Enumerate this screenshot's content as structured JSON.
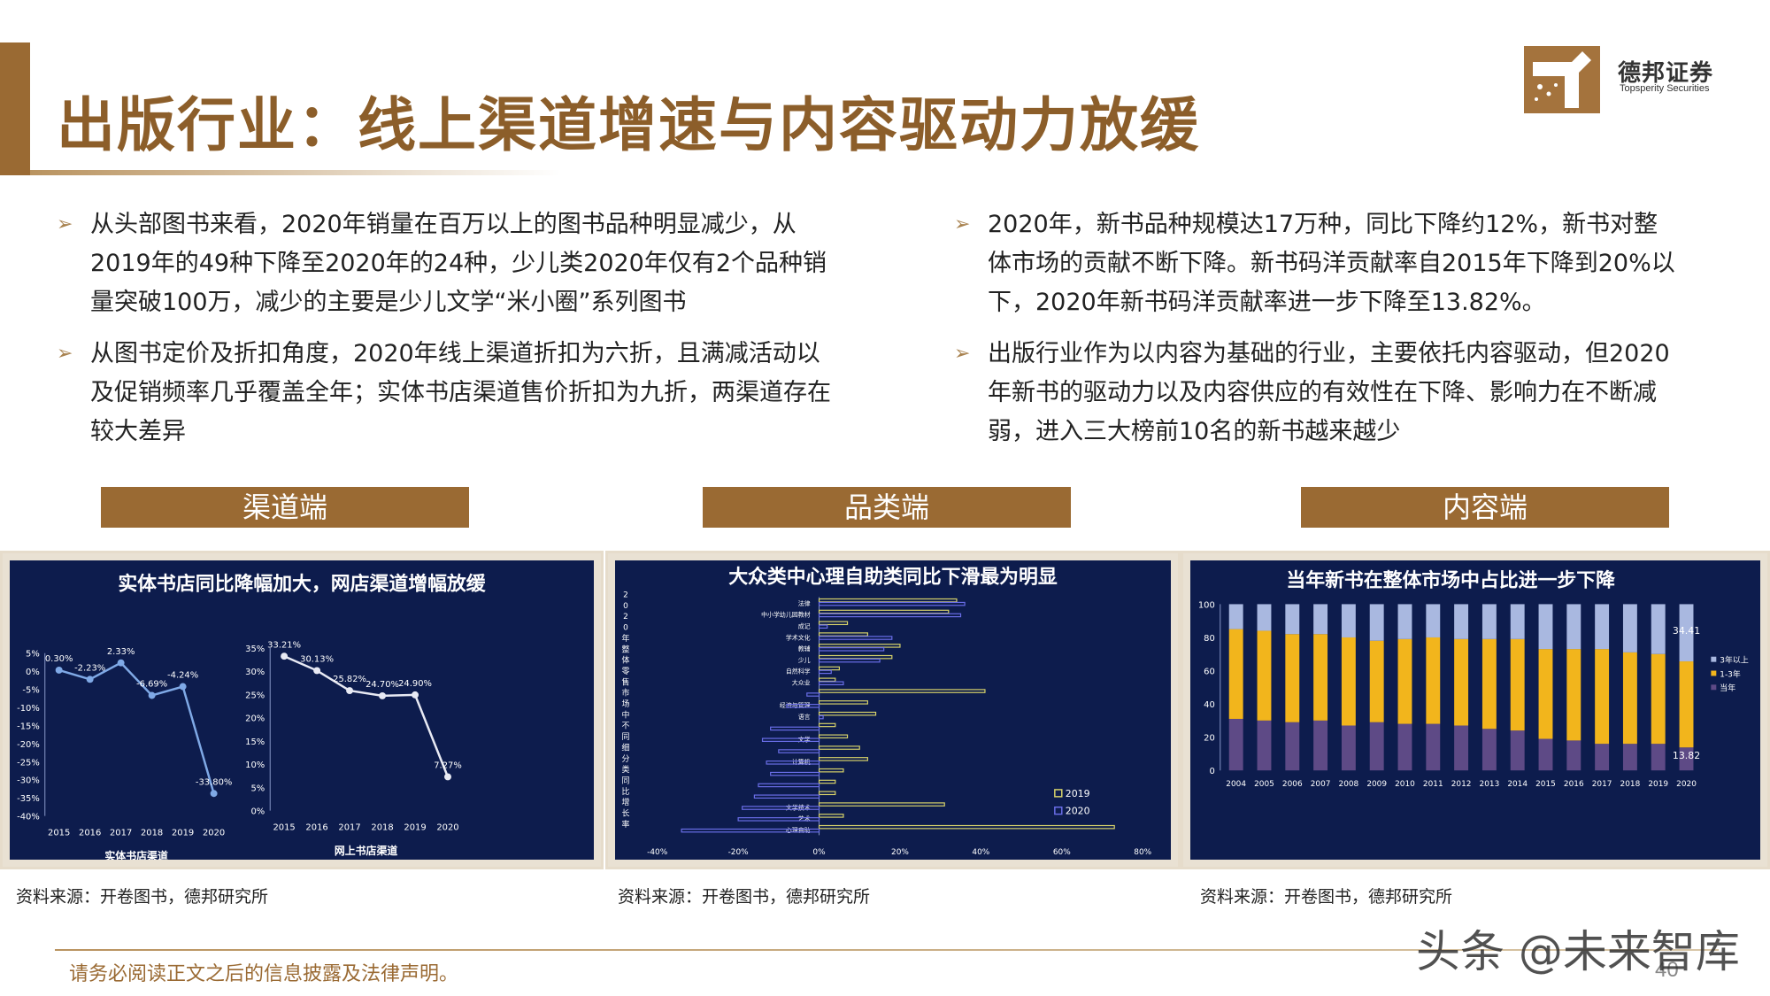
{
  "header": {
    "title": "出版行业：线上渠道增速与内容驱动力放缓"
  },
  "brand": {
    "name": "德邦证券",
    "sub": "Topsperity Securities",
    "accent": "#9a6a33"
  },
  "bullets_left": [
    "从头部图书来看，2020年销量在百万以上的图书品种明显减少，从2019年的49种下降至2020年的24种，少儿类2020年仅有2个品种销量突破100万，减少的主要是少儿文学“米小圈”系列图书",
    "从图书定价及折扣角度，2020年线上渠道折扣为六折，且满减活动以及促销频率几乎覆盖全年；实体书店渠道售价折扣为九折，两渠道存在较大差异"
  ],
  "bullets_right": [
    "2020年，新书品种规模达17万种，同比下降约12%，新书对整体市场的贡献不断下降。新书码洋贡献率自2015年下降到20%以下，2020年新书码洋贡献率进一步下降至13.82%。",
    "出版行业作为以内容为基础的行业，主要依托内容驱动，但2020年新书的驱动力以及内容供应的有效性在下降、影响力在不断减弱，进入三大榜前10名的新书越来越少"
  ],
  "sections": {
    "channel": "渠道端",
    "category": "品类端",
    "content": "内容端"
  },
  "sources": {
    "s1": "资料来源：开卷图书，德邦研究所",
    "s2": "资料来源：开卷图书，德邦研究所",
    "s3": "资料来源：开卷图书，德邦研究所"
  },
  "footer": {
    "note": "请务必阅读正文之后的信息披露及法律声明。",
    "page": "40",
    "watermark": "头条 @未来智库"
  },
  "chart_data": [
    {
      "type": "line",
      "title": "实体书店同比降幅加大，网店渠道增幅放缓",
      "xlabel": "实体书店渠道",
      "x": [
        "2015",
        "2016",
        "2017",
        "2018",
        "2019",
        "2020"
      ],
      "values": [
        0.3,
        -2.23,
        2.33,
        -6.69,
        -4.24,
        -33.8
      ],
      "labels": [
        "0.30%",
        "-2.23%",
        "2.33%",
        "-6.69%",
        "-4.24%",
        "-33.80%"
      ],
      "yticks": [
        "5%",
        "0%",
        "-5%",
        "-10%",
        "-15%",
        "-20%",
        "-25%",
        "-30%",
        "-35%",
        "-40%"
      ],
      "ylim": [
        -40,
        5
      ]
    },
    {
      "type": "line",
      "title": "实体书店同比降幅加大，网店渠道增幅放缓",
      "xlabel": "网上书店渠道",
      "x": [
        "2015",
        "2016",
        "2017",
        "2018",
        "2019",
        "2020"
      ],
      "values": [
        33.21,
        30.13,
        25.82,
        24.7,
        24.9,
        7.27
      ],
      "labels": [
        "33.21%",
        "30.13%",
        "25.82%",
        "24.70%",
        "24.90%",
        "7.27%"
      ],
      "yticks": [
        "35%",
        "30%",
        "25%",
        "20%",
        "15%",
        "10%",
        "5%",
        "0%"
      ],
      "ylim": [
        0,
        35
      ]
    },
    {
      "type": "bar",
      "title": "大众类中心理自助类同比下滑最为明显",
      "ylabel": "2020年整体零售市场中不同细分类同比增长率",
      "categories": [
        "法律",
        "中小学幼儿园教材",
        "成记",
        "学术文化",
        "教辅",
        "少儿",
        "自然科学",
        "大众业",
        "",
        "经济与管理",
        "语言",
        "",
        "文学",
        "",
        "计算机",
        "",
        "",
        "",
        "文学技术",
        "艺术",
        "心理自助"
      ],
      "xticks": [
        "-40%",
        "-20%",
        "0%",
        "20%",
        "40%",
        "60%",
        "80%"
      ],
      "xlim": [
        -40,
        80
      ],
      "series": [
        {
          "name": "2019",
          "color": "#d8d36a",
          "values": [
            34,
            32,
            7,
            12,
            20,
            18,
            5,
            4,
            41,
            12,
            14,
            4,
            7,
            10,
            12,
            6,
            4,
            4,
            31,
            6,
            73
          ]
        },
        {
          "name": "2020",
          "color": "#6a6ee8",
          "values": [
            36,
            35,
            2,
            18,
            16,
            15,
            3,
            6,
            -3,
            -8,
            1,
            -12,
            -14,
            -10,
            -13,
            -12,
            -15,
            -16,
            -19,
            -20,
            -34
          ]
        }
      ]
    },
    {
      "type": "bar",
      "title": "当年新书在整体市场中占比进一步下降",
      "categories": [
        "2004",
        "2005",
        "2006",
        "2007",
        "2008",
        "2009",
        "2010",
        "2011",
        "2012",
        "2013",
        "2014",
        "2015",
        "2016",
        "2017",
        "2018",
        "2019",
        "2020"
      ],
      "yticks": [
        "100",
        "80",
        "60",
        "40",
        "20",
        "0"
      ],
      "ylim": [
        0,
        100
      ],
      "annotations": [
        "34.41",
        "13.82"
      ],
      "series": [
        {
          "name": "当年",
          "color": "#5e4a86",
          "values": [
            31,
            30,
            29,
            30,
            27,
            29,
            28,
            28,
            27,
            25,
            24,
            19,
            18,
            16,
            16,
            16,
            13.82
          ]
        },
        {
          "name": "1-3年",
          "color": "#f2b51c",
          "values": [
            54,
            54,
            53,
            52,
            53,
            49,
            51,
            52,
            52,
            54,
            55,
            54,
            55,
            57,
            55,
            54,
            51.77
          ]
        },
        {
          "name": "3年以上",
          "color": "#a9b8e0",
          "values": [
            15,
            16,
            18,
            18,
            20,
            22,
            21,
            20,
            21,
            21,
            21,
            27,
            27,
            27,
            29,
            30,
            34.41
          ]
        }
      ]
    }
  ]
}
